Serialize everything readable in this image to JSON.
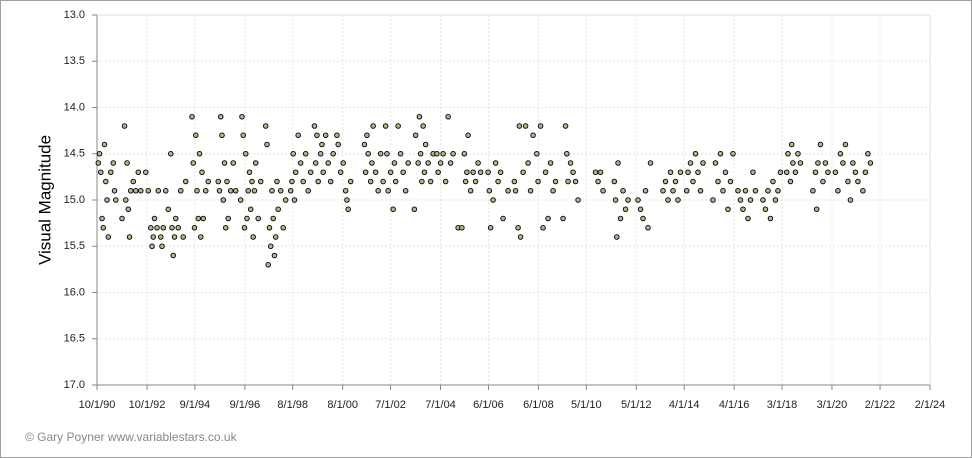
{
  "chart_data": {
    "type": "scatter",
    "y_label": "Visual Magnitude",
    "credit": "© Gary Poyner www.variablestars.co.uk",
    "color": "#b5b58a",
    "y_reversed": true,
    "grid": true,
    "ylim": [
      13,
      17
    ],
    "yticks": [
      {
        "value": 13,
        "label": "13.0"
      },
      {
        "value": 13.5,
        "label": "13.5"
      },
      {
        "value": 14,
        "label": "14.0"
      },
      {
        "value": 14.5,
        "label": "14.5"
      },
      {
        "value": 15,
        "label": "15.0"
      },
      {
        "value": 15.5,
        "label": "15.5"
      },
      {
        "value": 16,
        "label": "16.0"
      },
      {
        "value": 16.5,
        "label": "16.5"
      },
      {
        "value": 17,
        "label": "17.0"
      }
    ],
    "xlim": [
      1990.748,
      2024.085
    ],
    "xticks": [
      {
        "value": 1990.748,
        "label": "10/1/90"
      },
      {
        "value": 1992.75,
        "label": "10/1/92"
      },
      {
        "value": 1994.666,
        "label": "9/1/94"
      },
      {
        "value": 1996.666,
        "label": "9/1/96"
      },
      {
        "value": 1998.581,
        "label": "8/1/98"
      },
      {
        "value": 2000.581,
        "label": "8/1/00"
      },
      {
        "value": 2002.496,
        "label": "7/1/02"
      },
      {
        "value": 2004.496,
        "label": "7/1/04"
      },
      {
        "value": 2006.414,
        "label": "6/1/06"
      },
      {
        "value": 2008.414,
        "label": "6/1/08"
      },
      {
        "value": 2010.33,
        "label": "5/1/10"
      },
      {
        "value": 2012.33,
        "label": "5/1/12"
      },
      {
        "value": 2014.247,
        "label": "4/1/14"
      },
      {
        "value": 2016.247,
        "label": "4/1/16"
      },
      {
        "value": 2018.162,
        "label": "3/1/18"
      },
      {
        "value": 2020.162,
        "label": "3/1/20"
      },
      {
        "value": 2022.085,
        "label": "2/1/22"
      },
      {
        "value": 2024.085,
        "label": "2/1/24"
      }
    ],
    "x": [
      1990.8,
      1990.85,
      1990.9,
      1990.95,
      1991.0,
      1991.05,
      1991.1,
      1991.15,
      1991.2,
      1991.3,
      1991.4,
      1991.45,
      1991.5,
      1991.75,
      1991.85,
      1991.9,
      1991.95,
      1992.0,
      1992.05,
      1992.1,
      1992.2,
      1992.3,
      1992.4,
      1992.5,
      1992.7,
      1992.8,
      1992.9,
      1992.95,
      1993.0,
      1993.05,
      1993.15,
      1993.2,
      1993.3,
      1993.35,
      1993.4,
      1993.5,
      1993.6,
      1993.7,
      1993.75,
      1993.8,
      1993.85,
      1993.9,
      1994.0,
      1994.1,
      1994.2,
      1994.3,
      1994.55,
      1994.6,
      1994.65,
      1994.7,
      1994.75,
      1994.8,
      1994.85,
      1994.9,
      1994.95,
      1995.0,
      1995.1,
      1995.2,
      1995.6,
      1995.65,
      1995.7,
      1995.75,
      1995.8,
      1995.85,
      1995.9,
      1995.95,
      1996.0,
      1996.1,
      1996.2,
      1996.3,
      1996.5,
      1996.55,
      1996.6,
      1996.65,
      1996.7,
      1996.75,
      1996.8,
      1996.85,
      1996.9,
      1996.95,
      1997.0,
      1997.05,
      1997.1,
      1997.2,
      1997.3,
      1997.5,
      1997.55,
      1997.6,
      1997.65,
      1997.7,
      1997.75,
      1997.8,
      1997.85,
      1997.9,
      1997.95,
      1998.0,
      1998.1,
      1998.2,
      1998.3,
      1998.5,
      1998.55,
      1998.6,
      1998.65,
      1998.7,
      1998.8,
      1998.9,
      1999.0,
      1999.1,
      1999.2,
      1999.3,
      1999.45,
      1999.5,
      1999.55,
      1999.6,
      1999.7,
      1999.75,
      1999.8,
      1999.9,
      2000.0,
      2000.1,
      2000.2,
      2000.35,
      2000.4,
      2000.5,
      2000.6,
      2000.7,
      2000.75,
      2000.8,
      2000.9,
      2001.45,
      2001.5,
      2001.55,
      2001.6,
      2001.7,
      2001.75,
      2001.8,
      2001.9,
      2002.0,
      2002.1,
      2002.2,
      2002.3,
      2002.35,
      2002.4,
      2002.5,
      2002.6,
      2002.65,
      2002.7,
      2002.8,
      2002.9,
      2003.0,
      2003.1,
      2003.2,
      2003.45,
      2003.5,
      2003.6,
      2003.65,
      2003.7,
      2003.75,
      2003.8,
      2003.85,
      2003.9,
      2004.0,
      2004.1,
      2004.2,
      2004.35,
      2004.4,
      2004.5,
      2004.6,
      2004.7,
      2004.8,
      2004.9,
      2005.0,
      2005.2,
      2005.35,
      2005.45,
      2005.5,
      2005.55,
      2005.6,
      2005.7,
      2005.8,
      2005.9,
      2006.0,
      2006.1,
      2006.4,
      2006.45,
      2006.5,
      2006.6,
      2006.7,
      2006.8,
      2006.9,
      2007.0,
      2007.2,
      2007.45,
      2007.5,
      2007.6,
      2007.65,
      2007.7,
      2007.8,
      2007.9,
      2008.0,
      2008.1,
      2008.2,
      2008.35,
      2008.4,
      2008.5,
      2008.6,
      2008.7,
      2008.8,
      2008.9,
      2009.0,
      2009.1,
      2009.4,
      2009.5,
      2009.55,
      2009.6,
      2009.7,
      2009.8,
      2009.9,
      2010.0,
      2010.7,
      2010.8,
      2010.9,
      2011.0,
      2011.45,
      2011.5,
      2011.55,
      2011.6,
      2011.7,
      2011.8,
      2011.9,
      2012.0,
      2012.4,
      2012.5,
      2012.6,
      2012.7,
      2012.8,
      2012.9,
      2013.4,
      2013.5,
      2013.6,
      2013.7,
      2013.8,
      2013.9,
      2014.0,
      2014.1,
      2014.35,
      2014.4,
      2014.5,
      2014.6,
      2014.7,
      2014.8,
      2014.9,
      2015.0,
      2015.4,
      2015.5,
      2015.6,
      2015.7,
      2015.8,
      2015.9,
      2016.0,
      2016.1,
      2016.2,
      2016.4,
      2016.5,
      2016.6,
      2016.7,
      2016.8,
      2016.9,
      2017.0,
      2017.1,
      2017.4,
      2017.5,
      2017.6,
      2017.7,
      2017.8,
      2017.9,
      2018.0,
      2018.1,
      2018.35,
      2018.4,
      2018.5,
      2018.55,
      2018.6,
      2018.7,
      2018.8,
      2018.9,
      2019.4,
      2019.5,
      2019.55,
      2019.6,
      2019.7,
      2019.8,
      2019.9,
      2020.0,
      2020.3,
      2020.4,
      2020.5,
      2020.6,
      2020.7,
      2020.8,
      2020.9,
      2021.0,
      2021.1,
      2021.2,
      2021.4,
      2021.5,
      2021.6,
      2021.7
    ],
    "values": [
      14.6,
      14.5,
      14.7,
      15.2,
      15.3,
      14.4,
      14.8,
      15.0,
      15.4,
      14.7,
      14.6,
      14.9,
      15.0,
      15.2,
      14.2,
      15.0,
      14.6,
      15.1,
      15.4,
      14.9,
      14.8,
      14.9,
      14.7,
      14.9,
      14.7,
      14.9,
      15.3,
      15.5,
      15.4,
      15.2,
      15.3,
      14.9,
      15.4,
      15.5,
      15.3,
      14.9,
      15.1,
      14.5,
      15.3,
      15.6,
      15.4,
      15.2,
      15.3,
      14.9,
      15.4,
      14.8,
      14.1,
      14.6,
      15.3,
      14.3,
      14.9,
      15.2,
      14.5,
      15.4,
      14.7,
      15.2,
      14.9,
      14.8,
      14.8,
      14.9,
      14.1,
      14.3,
      15.0,
      14.6,
      15.3,
      14.8,
      15.2,
      14.9,
      14.6,
      14.9,
      15.0,
      14.1,
      14.3,
      15.3,
      14.5,
      15.2,
      14.9,
      14.7,
      15.1,
      14.8,
      15.4,
      14.9,
      14.6,
      15.2,
      14.8,
      14.2,
      14.4,
      15.7,
      15.3,
      15.5,
      14.9,
      15.2,
      15.6,
      15.4,
      14.8,
      15.1,
      14.9,
      15.3,
      15.0,
      14.9,
      14.8,
      14.5,
      15.0,
      14.7,
      14.3,
      14.6,
      14.8,
      14.5,
      14.9,
      14.7,
      14.2,
      14.6,
      14.3,
      14.8,
      14.5,
      14.4,
      14.7,
      14.3,
      14.6,
      14.8,
      14.5,
      14.3,
      14.4,
      14.7,
      14.6,
      14.9,
      15.0,
      15.1,
      14.8,
      14.4,
      14.7,
      14.3,
      14.5,
      14.8,
      14.6,
      14.2,
      14.7,
      14.9,
      14.5,
      14.8,
      14.2,
      14.5,
      14.9,
      14.7,
      15.1,
      14.6,
      14.8,
      14.2,
      14.5,
      14.7,
      14.9,
      14.6,
      15.1,
      14.3,
      14.6,
      14.1,
      14.5,
      14.8,
      14.2,
      14.7,
      14.4,
      14.6,
      14.8,
      14.5,
      14.5,
      14.7,
      14.6,
      14.5,
      14.8,
      14.1,
      14.6,
      14.5,
      15.3,
      15.3,
      14.5,
      14.8,
      14.7,
      14.3,
      14.9,
      14.7,
      14.8,
      14.6,
      14.7,
      14.7,
      14.9,
      15.3,
      15.0,
      14.6,
      14.8,
      14.7,
      15.2,
      14.9,
      14.8,
      14.9,
      15.3,
      14.2,
      15.4,
      14.7,
      14.2,
      14.6,
      14.9,
      14.3,
      14.5,
      14.8,
      14.2,
      15.3,
      14.7,
      15.2,
      14.6,
      14.9,
      14.8,
      15.2,
      14.2,
      14.5,
      14.8,
      14.6,
      14.7,
      14.8,
      15.0,
      14.7,
      14.8,
      14.7,
      14.9,
      14.8,
      15.0,
      15.4,
      14.6,
      15.2,
      14.9,
      15.1,
      15.0,
      15.0,
      15.1,
      15.2,
      14.9,
      15.3,
      14.6,
      14.9,
      14.8,
      15.0,
      14.7,
      14.9,
      14.8,
      15.0,
      14.7,
      14.9,
      14.7,
      14.6,
      14.8,
      14.5,
      14.7,
      14.9,
      14.6,
      15.0,
      14.6,
      14.8,
      14.5,
      14.9,
      14.7,
      15.1,
      14.8,
      14.5,
      14.9,
      15.0,
      15.1,
      14.9,
      15.2,
      15.0,
      14.7,
      14.9,
      15.0,
      15.1,
      14.9,
      15.2,
      14.8,
      15.0,
      14.9,
      14.7,
      14.7,
      14.5,
      14.8,
      14.4,
      14.6,
      14.7,
      14.5,
      14.6,
      14.9,
      14.7,
      15.1,
      14.6,
      14.4,
      14.8,
      14.6,
      14.7,
      14.7,
      14.9,
      14.5,
      14.6,
      14.4,
      14.8,
      15.0,
      14.6,
      14.7,
      14.8,
      14.9,
      14.7,
      14.5,
      14.6
    ]
  }
}
